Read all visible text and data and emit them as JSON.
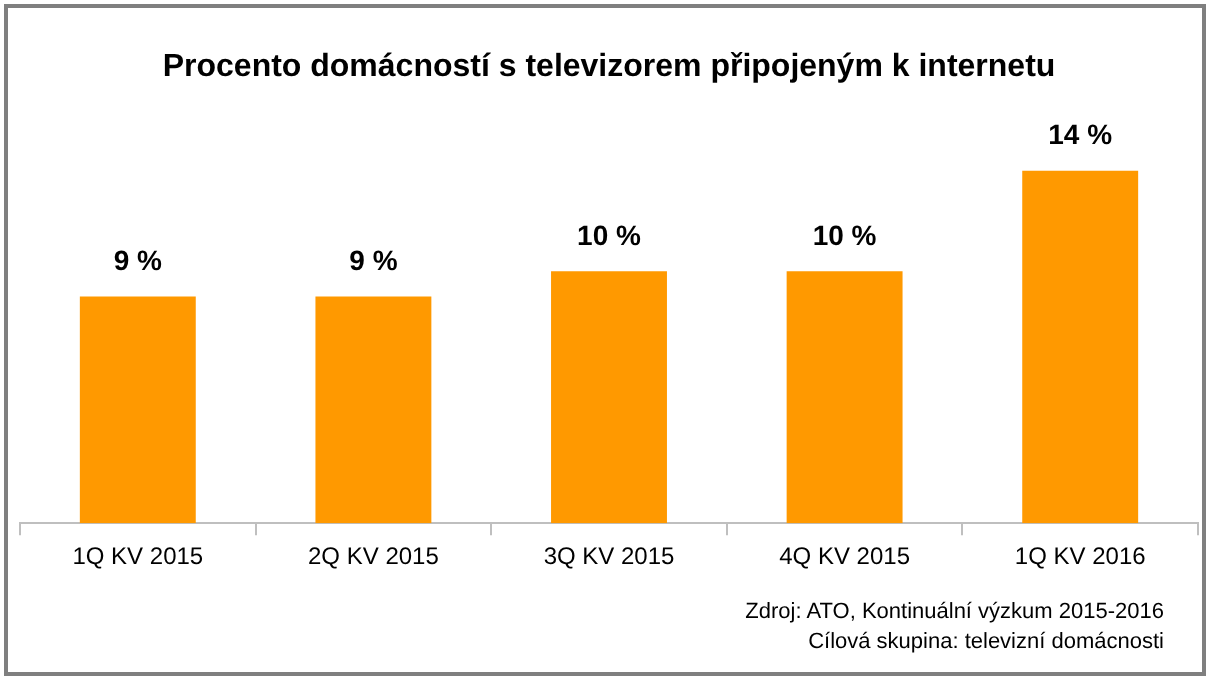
{
  "chart_data": {
    "type": "bar",
    "title": "Procento domácností s televizorem připojeným k internetu",
    "categories": [
      "1Q KV 2015",
      "2Q KV 2015",
      "3Q KV 2015",
      "4Q KV 2015",
      "1Q KV 2016"
    ],
    "values": [
      9,
      9,
      10,
      10,
      14
    ],
    "value_labels": [
      "9 %",
      "9 %",
      "10 %",
      "10 %",
      "14 %"
    ],
    "color": "#ff9900",
    "annotations": [
      "Zdroj: ATO, Kontinuální výzkum 2015-2016",
      "Cílová skupina: televizní domácnosti"
    ]
  }
}
